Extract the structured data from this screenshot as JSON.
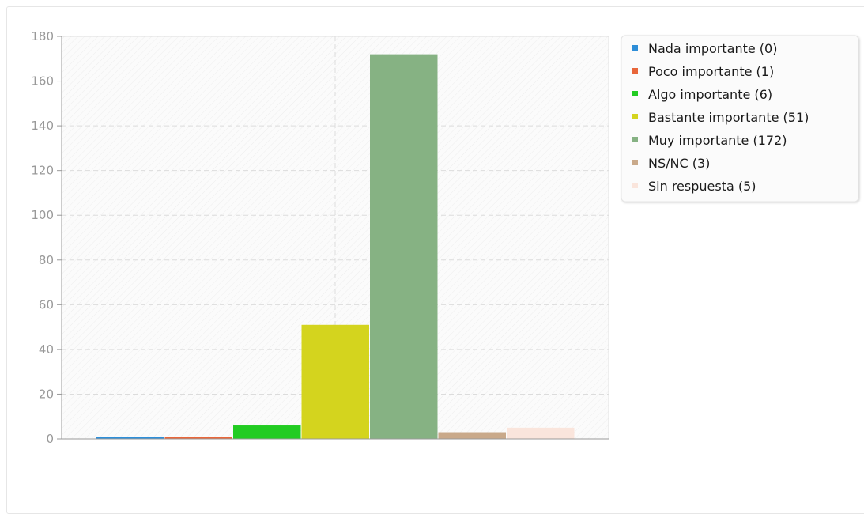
{
  "chart_data": {
    "type": "bar",
    "categories": [
      "Nada importante",
      "Poco importante",
      "Algo importante",
      "Bastante importante",
      "Muy importante",
      "NS/NC",
      "Sin respuesta"
    ],
    "values": [
      0,
      1,
      6,
      51,
      172,
      3,
      5
    ],
    "colors": [
      "#2e8ed8",
      "#e8663a",
      "#22cc22",
      "#d4d41e",
      "#86b283",
      "#c9a98a",
      "#fae5dc"
    ],
    "legend": [
      "Nada importante (0)",
      "Poco importante (1)",
      "Algo importante (6)",
      "Bastante importante (51)",
      "Muy importante (172)",
      "NS/NC (3)",
      "Sin respuesta (5)"
    ],
    "y_ticks": [
      "0",
      "20",
      "40",
      "60",
      "80",
      "100",
      "120",
      "140",
      "160",
      "180"
    ],
    "ylim": [
      0,
      180
    ],
    "grid": true,
    "legend_position": "top-right"
  }
}
